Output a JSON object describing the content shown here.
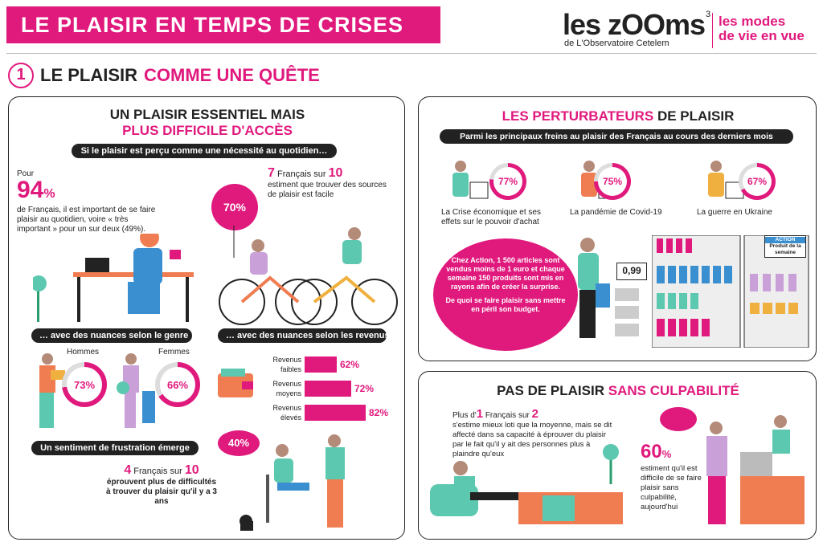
{
  "header": {
    "title": "LE PLAISIR EN TEMPS DE CRISES",
    "logo_main": "les zOOms",
    "logo_sup": "3",
    "logo_sub": "de L'Observatoire Cetelem",
    "tagline_1": "les modes",
    "tagline_2": "de vie en vue"
  },
  "section": {
    "number": "1",
    "title_a": "LE PLAISIR",
    "title_b": "COMME UNE QUÊTE"
  },
  "left": {
    "heading_a": "UN PLAISIR ESSENTIEL MAIS",
    "heading_b": "PLUS DIFFICILE D'ACCÈS",
    "pill1": "Si le plaisir est perçu comme une nécessité au quotidien…",
    "stat94_pre": "Pour",
    "stat94": "94",
    "stat94_pct": "%",
    "stat94_text": "de Français, il est important de se faire plaisir au quotidien, voire « très important » pour un sur deux (49%).",
    "stat7_a": "7",
    "stat7_b": "Français sur",
    "stat7_c": "10",
    "stat7_text": "estiment que trouver des sources de plaisir est facile",
    "bubble70": "70%",
    "pill_genre": "… avec des nuances selon le genre",
    "hommes": "Hommes",
    "hommes_pct": "73%",
    "femmes": "Femmes",
    "femmes_pct": "66%",
    "pill_revenus": "… avec des nuances selon les revenus",
    "revenus": [
      {
        "label": "Revenus faibles",
        "value": 62,
        "display": "62%"
      },
      {
        "label": "Revenus moyens",
        "value": 72,
        "display": "72%"
      },
      {
        "label": "Revenus élevés",
        "value": 82,
        "display": "82%"
      }
    ],
    "pill_frustration": "Un sentiment de frustration émerge",
    "cloud40": "40%",
    "stat4_a": "4",
    "stat4_b": "Français sur",
    "stat4_c": "10",
    "stat4_text": "éprouvent plus de difficultés à trouver du plaisir qu'il y a 3 ans"
  },
  "topright": {
    "heading_a": "LES PERTURBATEURS",
    "heading_b": "DE PLAISIR",
    "pill": "Parmi les principaux freins au plaisir des Français au cours des derniers mois",
    "freins": [
      {
        "pct": "77%",
        "label": "La Crise économique et ses effets sur le pouvoir d'achat"
      },
      {
        "pct": "75%",
        "label": "La pandémie de Covid-19"
      },
      {
        "pct": "67%",
        "label": "La guerre en Ukraine"
      }
    ],
    "blob_text": "Chez Action, 1 500 articles sont vendus moins de 1 euro et chaque semaine 150 produits sont mis en rayons afin de créer la surprise.",
    "blob_text2": "De quoi se faire plaisir sans mettre en péril son budget.",
    "price": "0,99",
    "shelf_sign": "Produit de la semaine",
    "shelf_brand": "ACTION"
  },
  "bottomright": {
    "heading_a": "PAS DE PLAISIR",
    "heading_b": "SANS CULPABILITÉ",
    "text1_a": "Plus d'",
    "text1_b": "1",
    "text1_c": "Français sur",
    "text1_d": "2",
    "text1": "s'estime mieux loti que la moyenne, mais se dit affecté dans sa capacité à éprouver du plaisir par le fait qu'il y ait des personnes plus à plaindre qu'eux",
    "stat60": "60",
    "stat60_pct": "%",
    "text60": "estiment qu'il est difficile de se faire plaisir sans culpabilité, aujourd'hui"
  },
  "colors": {
    "accent": "#e0197d",
    "teal": "#5cc8b0",
    "orange": "#f07d52"
  }
}
